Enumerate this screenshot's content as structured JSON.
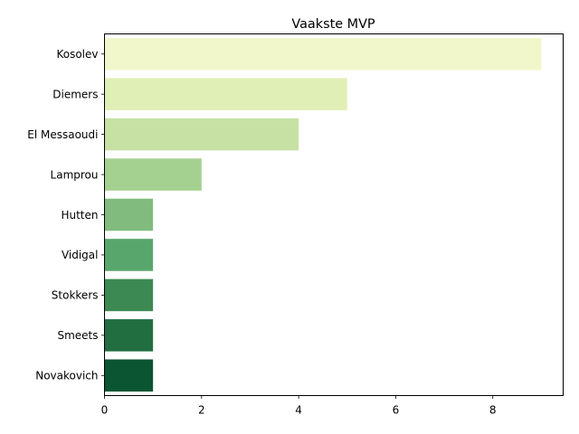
{
  "chart_data": {
    "type": "bar",
    "orientation": "horizontal",
    "title": "Vaakste MVP",
    "xlabel": "",
    "ylabel": "",
    "categories": [
      "Kosolev",
      "Diemers",
      "El Messaoudi",
      "Lamprou",
      "Hutten",
      "Vidigal",
      "Stokkers",
      "Smeets",
      "Novakovich"
    ],
    "values": [
      9,
      5,
      4,
      2,
      1,
      1,
      1,
      1,
      1
    ],
    "colors": [
      "#f2f6cb",
      "#e0efb6",
      "#c7e1a4",
      "#a5d190",
      "#81bc7e",
      "#59a66c",
      "#3c8954",
      "#216f41",
      "#0b5532"
    ],
    "xlim": [
      0,
      9.45
    ],
    "xticks": [
      0,
      2,
      4,
      6,
      8
    ],
    "grid": false,
    "legend": "none"
  }
}
